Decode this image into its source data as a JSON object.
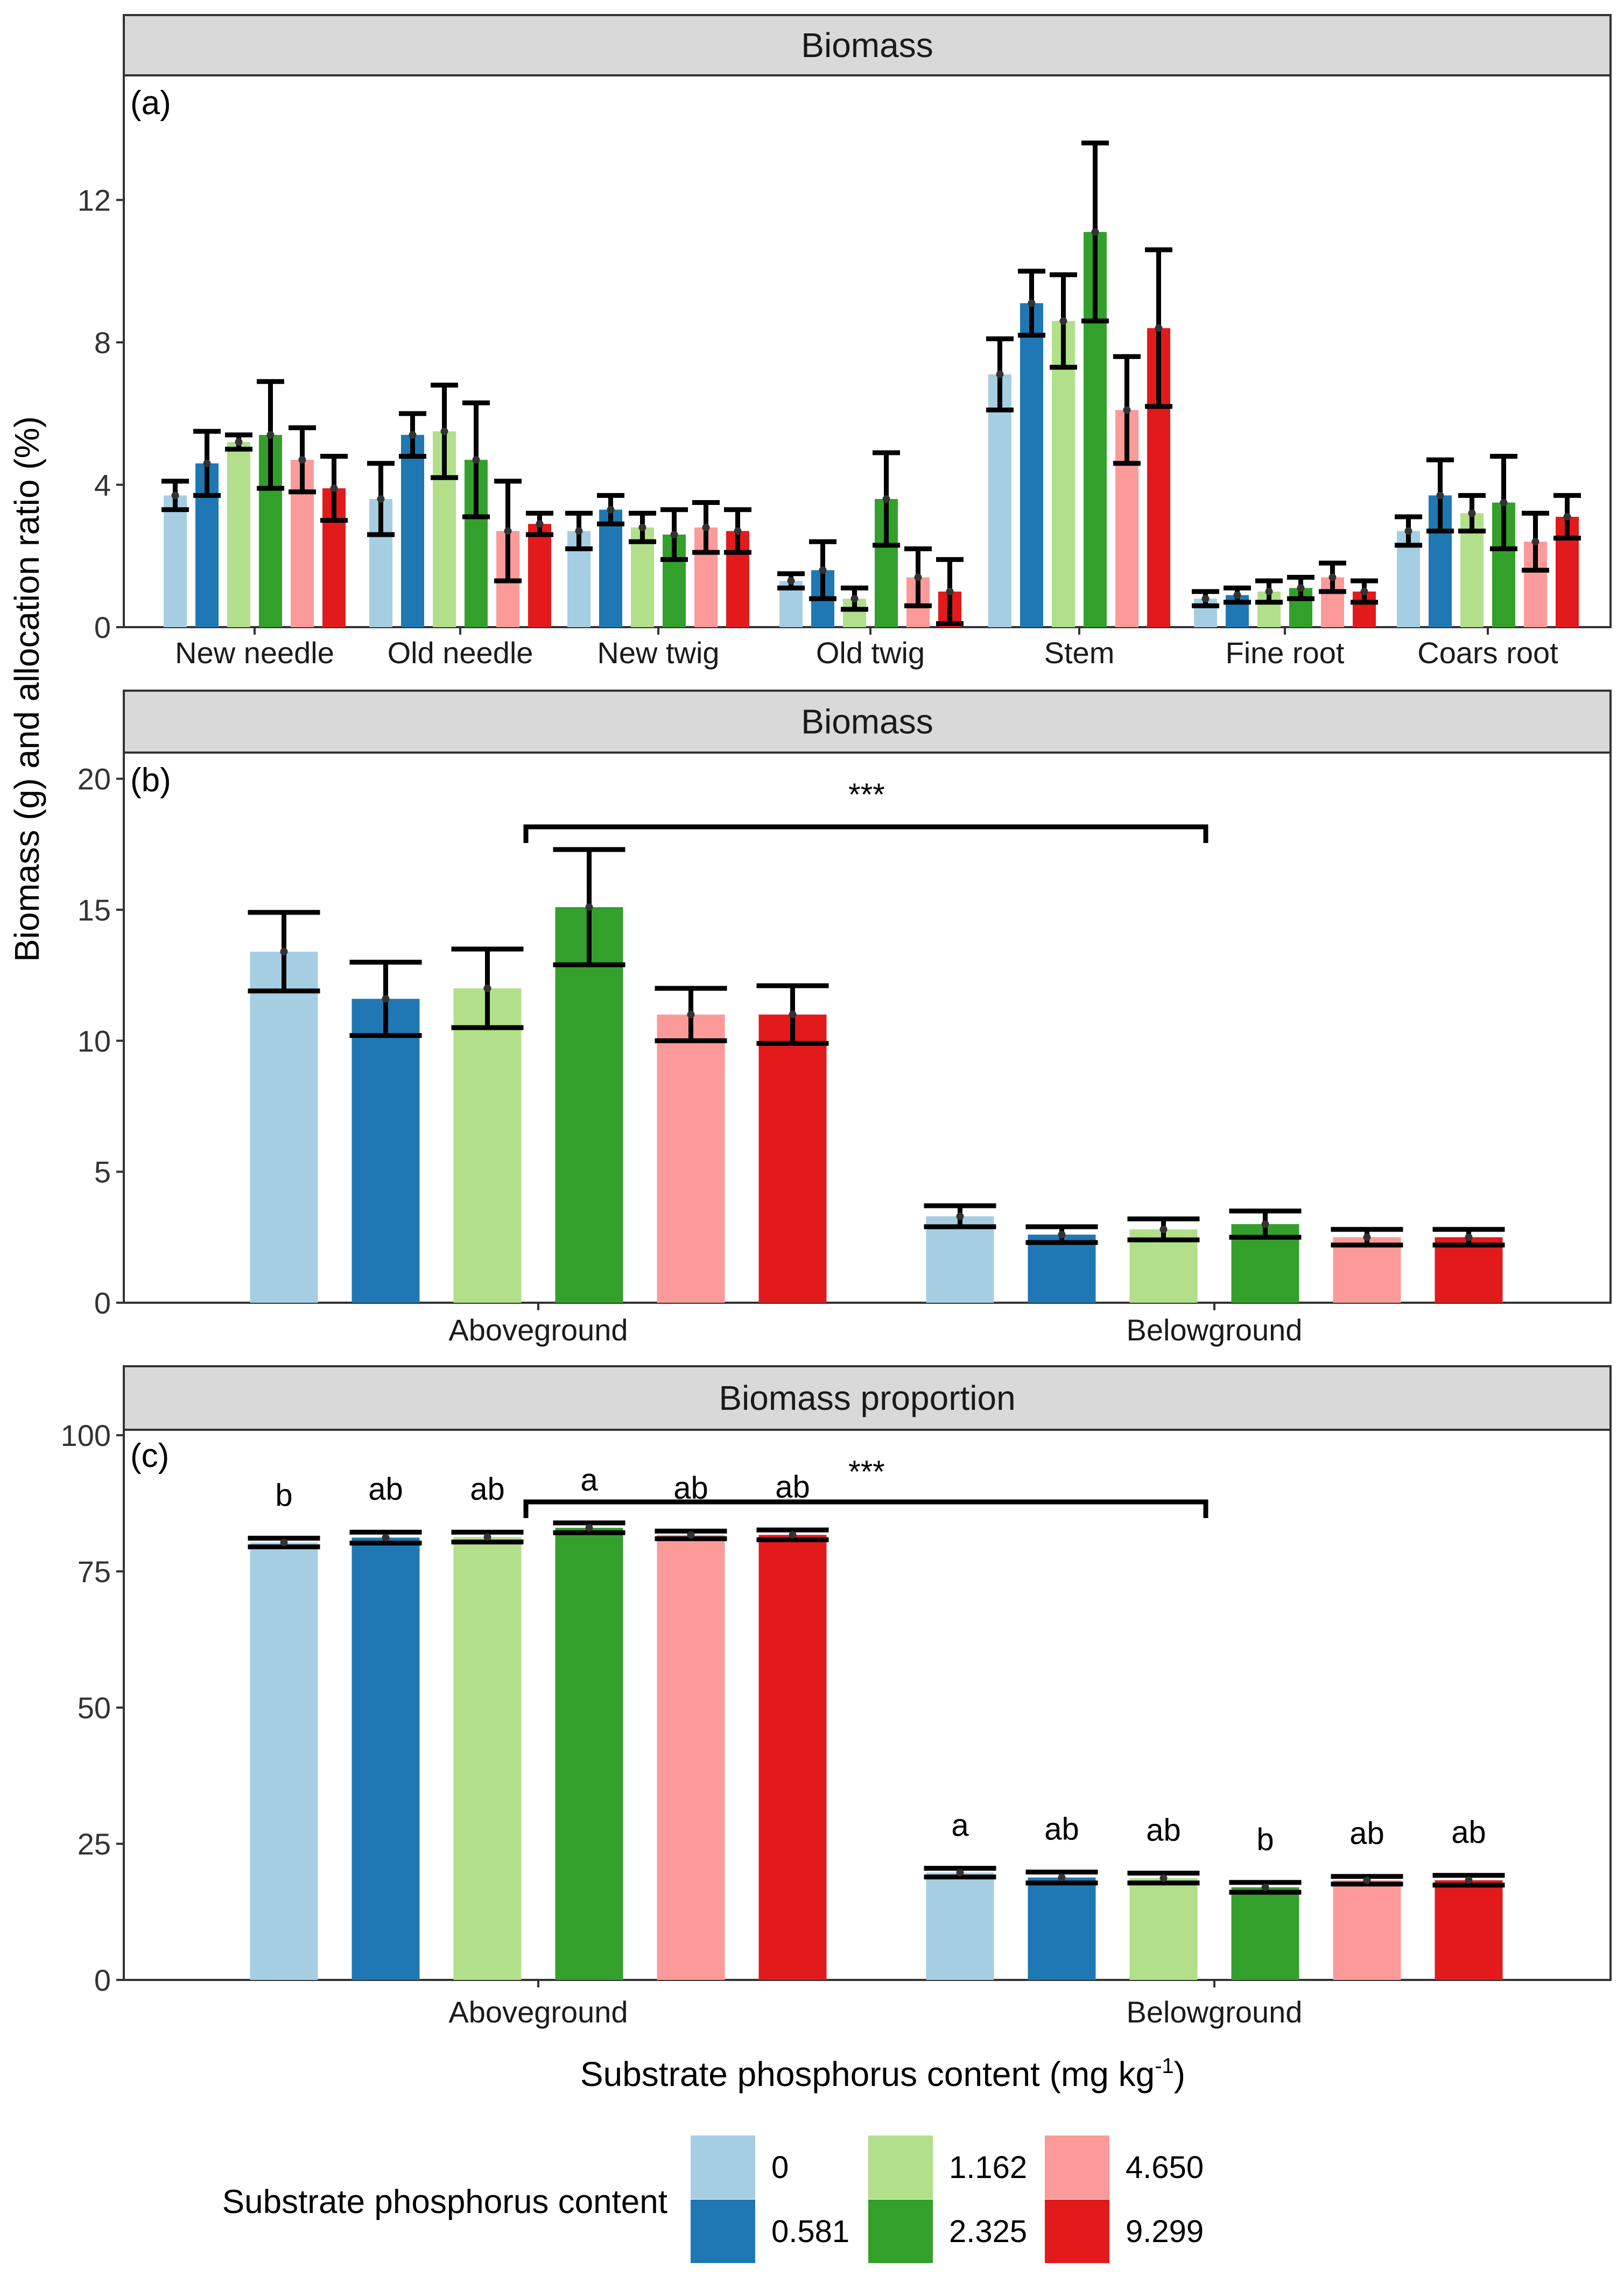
{
  "legend": {
    "title": "Substrate phosphorus content",
    "entries": [
      {
        "label": "0",
        "color": "#a6cee3"
      },
      {
        "label": "0.581",
        "color": "#1f78b4"
      },
      {
        "label": "1.162",
        "color": "#b2df8a"
      },
      {
        "label": "2.325",
        "color": "#33a02c"
      },
      {
        "label": "4.650",
        "color": "#fb9a99"
      },
      {
        "label": "9.299",
        "color": "#e31a1c"
      }
    ]
  },
  "y_axis_title": "Biomass (g) and allocation ratio (%)",
  "x_axis_title": "Substrate phosphorus content (mg kg",
  "x_axis_title_sup": "-1",
  "x_axis_title_end": ")",
  "chart_data": [
    {
      "type": "bar",
      "panel": "(a)",
      "title": "Biomass",
      "categories": [
        "New needle",
        "Old needle",
        "New twig",
        "Old twig",
        "Stem",
        "Fine root",
        "Coars root"
      ],
      "ylim": [
        0,
        15.5
      ],
      "yticks": [
        0,
        4,
        8,
        12
      ],
      "series": [
        {
          "name": "0",
          "values": [
            3.7,
            3.6,
            2.7,
            1.3,
            7.1,
            0.8,
            2.7
          ],
          "errors": [
            0.4,
            1.0,
            0.5,
            0.2,
            1.0,
            0.2,
            0.4
          ]
        },
        {
          "name": "0.581",
          "values": [
            4.6,
            5.4,
            3.3,
            1.6,
            9.1,
            0.9,
            3.7
          ],
          "errors": [
            0.9,
            0.6,
            0.4,
            0.8,
            0.9,
            0.2,
            1.0
          ]
        },
        {
          "name": "1.162",
          "values": [
            5.2,
            5.5,
            2.8,
            0.8,
            8.6,
            1.0,
            3.2
          ],
          "errors": [
            0.2,
            1.3,
            0.4,
            0.3,
            1.3,
            0.3,
            0.5
          ]
        },
        {
          "name": "2.325",
          "values": [
            5.4,
            4.7,
            2.6,
            3.6,
            11.1,
            1.1,
            3.5
          ],
          "errors": [
            1.5,
            1.6,
            0.7,
            1.3,
            2.5,
            0.3,
            1.3
          ]
        },
        {
          "name": "4.650",
          "values": [
            4.7,
            2.7,
            2.8,
            1.4,
            6.1,
            1.4,
            2.4
          ],
          "errors": [
            0.9,
            1.4,
            0.7,
            0.8,
            1.5,
            0.4,
            0.8
          ]
        },
        {
          "name": "9.299",
          "values": [
            3.9,
            2.9,
            2.7,
            1.0,
            8.4,
            1.0,
            3.1
          ],
          "errors": [
            0.9,
            0.3,
            0.6,
            0.9,
            2.2,
            0.3,
            0.6
          ]
        }
      ]
    },
    {
      "type": "bar",
      "panel": "(b)",
      "title": "Biomass",
      "categories": [
        "Aboveground",
        "Belowground"
      ],
      "ylim": [
        0,
        21
      ],
      "yticks": [
        0,
        5,
        10,
        15,
        20
      ],
      "significance": "***",
      "series": [
        {
          "name": "0",
          "values": [
            13.4,
            3.3
          ],
          "errors": [
            1.5,
            0.4
          ]
        },
        {
          "name": "0.581",
          "values": [
            11.6,
            2.6
          ],
          "errors": [
            1.4,
            0.3
          ]
        },
        {
          "name": "1.162",
          "values": [
            12.0,
            2.8
          ],
          "errors": [
            1.5,
            0.4
          ]
        },
        {
          "name": "2.325",
          "values": [
            15.1,
            3.0
          ],
          "errors": [
            2.2,
            0.5
          ]
        },
        {
          "name": "4.650",
          "values": [
            11.0,
            2.5
          ],
          "errors": [
            1.0,
            0.3
          ]
        },
        {
          "name": "9.299",
          "values": [
            11.0,
            2.5
          ],
          "errors": [
            1.1,
            0.3
          ]
        }
      ]
    },
    {
      "type": "bar",
      "panel": "(c)",
      "title": "Biomass proportion",
      "categories": [
        "Aboveground",
        "Belowground"
      ],
      "ylim": [
        0,
        101
      ],
      "yticks": [
        0,
        25,
        50,
        75,
        100
      ],
      "significance": "***",
      "series": [
        {
          "name": "0",
          "values": [
            80.3,
            19.7
          ],
          "letters": [
            "b",
            "a"
          ],
          "errors": [
            0.8,
            0.8
          ]
        },
        {
          "name": "0.581",
          "values": [
            81.2,
            18.8
          ],
          "letters": [
            "ab",
            "ab"
          ],
          "errors": [
            1.0,
            1.0
          ]
        },
        {
          "name": "1.162",
          "values": [
            81.3,
            18.7
          ],
          "letters": [
            "ab",
            "ab"
          ],
          "errors": [
            0.9,
            0.9
          ]
        },
        {
          "name": "2.325",
          "values": [
            83.0,
            17.0
          ],
          "letters": [
            "a",
            "b"
          ],
          "errors": [
            0.9,
            0.9
          ]
        },
        {
          "name": "4.650",
          "values": [
            81.7,
            18.3
          ],
          "letters": [
            "ab",
            "ab"
          ],
          "errors": [
            0.7,
            0.7
          ]
        },
        {
          "name": "9.299",
          "values": [
            81.7,
            18.3
          ],
          "letters": [
            "ab",
            "ab"
          ],
          "errors": [
            0.9,
            0.9
          ]
        }
      ]
    }
  ]
}
